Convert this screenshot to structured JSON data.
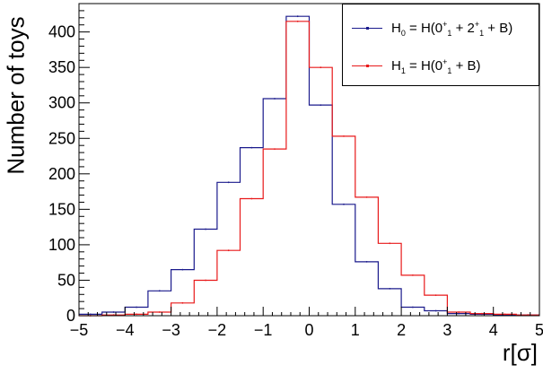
{
  "chart_data": {
    "type": "step-histogram",
    "xlabel": "r[σ]",
    "ylabel": "Number of toys",
    "xlim": [
      -5,
      5
    ],
    "ylim": [
      0,
      440
    ],
    "x_ticks": [
      -5,
      -4,
      -3,
      -2,
      -1,
      0,
      1,
      2,
      3,
      4,
      5
    ],
    "y_ticks": [
      0,
      50,
      100,
      150,
      200,
      250,
      300,
      350,
      400
    ],
    "bin_edges": [
      -5,
      -4.5,
      -4,
      -3.5,
      -3,
      -2.5,
      -2,
      -1.5,
      -1,
      -0.5,
      0,
      0.5,
      1,
      1.5,
      2,
      2.5,
      3,
      3.5,
      4,
      4.5,
      5
    ],
    "legend_position": "top-right",
    "series": [
      {
        "name": "H0",
        "label_parts": {
          "main": "H",
          "sub": "0",
          "eq": " = H(0",
          "s1sup": "+",
          "s1sub": "1",
          "plus": " + 2",
          "s2sup": "+",
          "s2sub": "1",
          "tail": " + B)"
        },
        "color": "#1a1a8c",
        "values": [
          2,
          5,
          12,
          35,
          65,
          122,
          188,
          237,
          306,
          422,
          297,
          157,
          76,
          38,
          12,
          7,
          3,
          2,
          1,
          1
        ]
      },
      {
        "name": "H1",
        "label_parts": {
          "main": "H",
          "sub": "1",
          "eq": " = H(0",
          "s1sup": "+",
          "s1sub": "1",
          "tail": " + B)"
        },
        "color": "#e8191a",
        "values": [
          0,
          1,
          2,
          5,
          18,
          50,
          92,
          165,
          235,
          415,
          350,
          253,
          167,
          102,
          57,
          29,
          5,
          3,
          2,
          1
        ]
      }
    ]
  }
}
